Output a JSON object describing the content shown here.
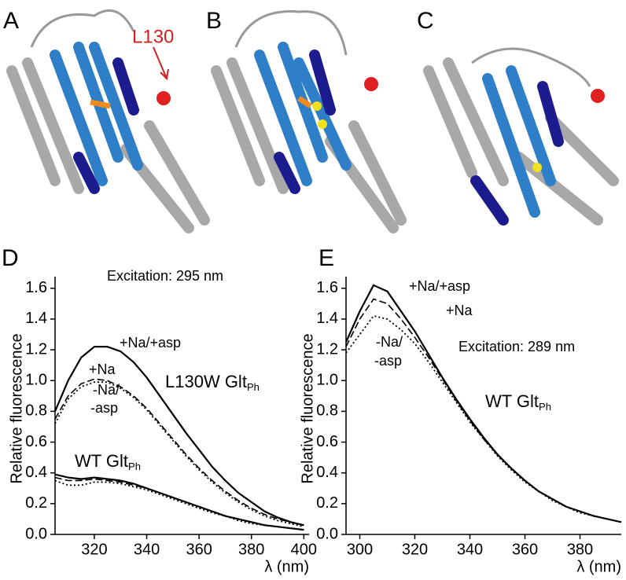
{
  "structures": {
    "labels": [
      "A",
      "B",
      "C"
    ],
    "annotation": "L130"
  },
  "chart_data": [
    {
      "type": "line",
      "label": "D",
      "xlabel": "λ (nm)",
      "ylabel": "Relative fluorescence",
      "annotations": [
        {
          "text": "Excitation: 295 nm"
        },
        {
          "text": "+Na/+asp"
        },
        {
          "text": "+Na"
        },
        {
          "text": "-Na/"
        },
        {
          "text": "-asp"
        },
        {
          "text": "L130W Glt",
          "sub": "Ph"
        },
        {
          "text": "WT Glt",
          "sub": "Ph"
        }
      ],
      "xlim": [
        305,
        402
      ],
      "ylim": [
        0,
        1.65
      ],
      "xticks": [
        320,
        340,
        360,
        380,
        400
      ],
      "yticks": [
        {
          "value": 0,
          "label": "0.0"
        },
        {
          "value": 0.2,
          "label": "0.2"
        },
        {
          "value": 0.4,
          "label": "0.4"
        },
        {
          "value": 0.6,
          "label": "0.6"
        },
        {
          "value": 0.8,
          "label": "0.8"
        },
        {
          "value": 1.0,
          "label": "1.0"
        },
        {
          "value": 1.2,
          "label": "1.2"
        },
        {
          "value": 1.4,
          "label": "1.4"
        },
        {
          "value": 1.6,
          "label": "1.6"
        }
      ],
      "x": [
        305,
        310,
        315,
        320,
        325,
        330,
        335,
        340,
        345,
        350,
        355,
        360,
        365,
        370,
        375,
        380,
        385,
        390,
        395,
        400
      ],
      "series": [
        {
          "color": "#000000",
          "style": "solid",
          "values": [
            0.8,
            1.0,
            1.15,
            1.22,
            1.22,
            1.19,
            1.12,
            1.02,
            0.9,
            0.78,
            0.66,
            0.55,
            0.44,
            0.35,
            0.27,
            0.21,
            0.15,
            0.11,
            0.08,
            0.06
          ]
        },
        {
          "color": "#000000",
          "style": "dashed",
          "values": [
            0.75,
            0.9,
            0.98,
            1.01,
            1.0,
            0.96,
            0.9,
            0.82,
            0.72,
            0.62,
            0.52,
            0.43,
            0.35,
            0.28,
            0.22,
            0.17,
            0.13,
            0.1,
            0.08,
            0.06
          ]
        },
        {
          "color": "#000000",
          "style": "dotted",
          "values": [
            0.72,
            0.88,
            0.96,
            0.99,
            0.99,
            0.95,
            0.89,
            0.81,
            0.71,
            0.61,
            0.51,
            0.42,
            0.34,
            0.27,
            0.21,
            0.16,
            0.12,
            0.09,
            0.07,
            0.05
          ]
        },
        {
          "color": "#000000",
          "style": "solid",
          "values": [
            0.39,
            0.37,
            0.36,
            0.37,
            0.36,
            0.35,
            0.33,
            0.3,
            0.27,
            0.24,
            0.21,
            0.18,
            0.15,
            0.12,
            0.1,
            0.08,
            0.06,
            0.05,
            0.04,
            0.03
          ]
        },
        {
          "color": "#000000",
          "style": "dashed",
          "values": [
            0.37,
            0.35,
            0.35,
            0.36,
            0.35,
            0.34,
            0.32,
            0.3,
            0.27,
            0.24,
            0.21,
            0.18,
            0.15,
            0.12,
            0.1,
            0.08,
            0.06,
            0.05,
            0.04,
            0.03
          ]
        },
        {
          "color": "#000000",
          "style": "dotted",
          "values": [
            0.35,
            0.32,
            0.32,
            0.34,
            0.34,
            0.33,
            0.31,
            0.29,
            0.26,
            0.23,
            0.2,
            0.17,
            0.14,
            0.12,
            0.09,
            0.07,
            0.06,
            0.05,
            0.04,
            0.03
          ]
        }
      ]
    },
    {
      "type": "line",
      "label": "E",
      "xlabel": "λ (nm)",
      "ylabel": "Relative fluorescence",
      "annotations": [
        {
          "text": "+Na/+asp"
        },
        {
          "text": "+Na"
        },
        {
          "text": "-Na/"
        },
        {
          "text": "-asp"
        },
        {
          "text": "Excitation: 289 nm"
        },
        {
          "text": "WT Glt",
          "sub": "Ph"
        }
      ],
      "xlim": [
        295,
        395
      ],
      "ylim": [
        0,
        1.65
      ],
      "xticks": [
        300,
        320,
        340,
        360,
        380
      ],
      "yticks": [
        {
          "value": 0,
          "label": "0.0"
        },
        {
          "value": 0.2,
          "label": "0.2"
        },
        {
          "value": 0.4,
          "label": "0.4"
        },
        {
          "value": 0.6,
          "label": "0.6"
        },
        {
          "value": 0.8,
          "label": "0.8"
        },
        {
          "value": 1.0,
          "label": "1.0"
        },
        {
          "value": 1.2,
          "label": "1.2"
        },
        {
          "value": 1.4,
          "label": "1.4"
        },
        {
          "value": 1.6,
          "label": "1.6"
        }
      ],
      "x": [
        295,
        300,
        305,
        310,
        315,
        320,
        325,
        330,
        335,
        340,
        345,
        350,
        355,
        360,
        365,
        370,
        375,
        380,
        385,
        390,
        395
      ],
      "series": [
        {
          "color": "#000000",
          "style": "solid",
          "values": [
            1.25,
            1.45,
            1.62,
            1.58,
            1.45,
            1.32,
            1.17,
            1.02,
            0.88,
            0.75,
            0.63,
            0.52,
            0.43,
            0.35,
            0.28,
            0.23,
            0.18,
            0.15,
            0.12,
            0.1,
            0.08
          ]
        },
        {
          "color": "#000000",
          "style": "dashed",
          "values": [
            1.22,
            1.4,
            1.53,
            1.5,
            1.4,
            1.28,
            1.15,
            1.01,
            0.87,
            0.74,
            0.62,
            0.52,
            0.43,
            0.35,
            0.28,
            0.23,
            0.18,
            0.15,
            0.12,
            0.1,
            0.08
          ]
        },
        {
          "color": "#000000",
          "style": "dotted",
          "values": [
            1.18,
            1.3,
            1.42,
            1.4,
            1.33,
            1.24,
            1.12,
            0.99,
            0.86,
            0.73,
            0.62,
            0.51,
            0.42,
            0.34,
            0.28,
            0.22,
            0.18,
            0.14,
            0.12,
            0.1,
            0.08
          ]
        }
      ]
    }
  ]
}
